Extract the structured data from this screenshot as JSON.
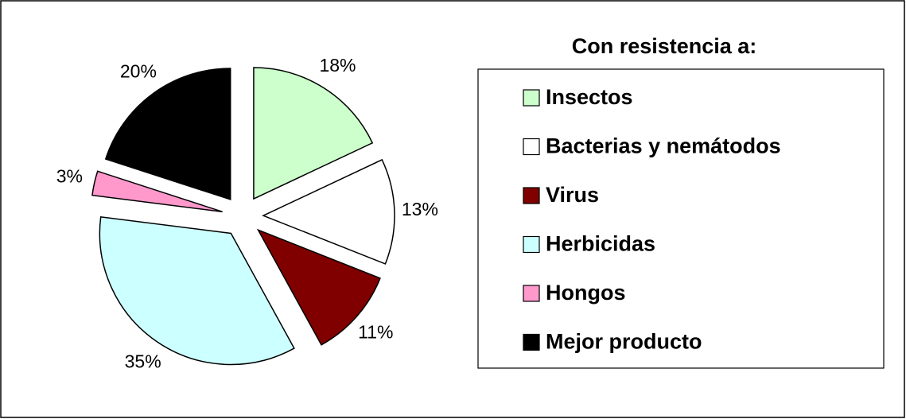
{
  "chart_data": {
    "type": "pie",
    "categories": [
      "Insectos",
      "Bacterias y nemátodos",
      "Virus",
      "Herbicidas",
      "Hongos",
      "Mejor producto"
    ],
    "values": [
      18,
      13,
      11,
      35,
      3,
      20
    ],
    "value_labels": [
      "18%",
      "13%",
      "11%",
      "35%",
      "3%",
      "20%"
    ],
    "colors": [
      "#ccffcc",
      "#ffffff",
      "#800000",
      "#ccffff",
      "#ff99cc",
      "#000000"
    ],
    "legend_title": "Con resistencia a:",
    "legend": "right"
  }
}
